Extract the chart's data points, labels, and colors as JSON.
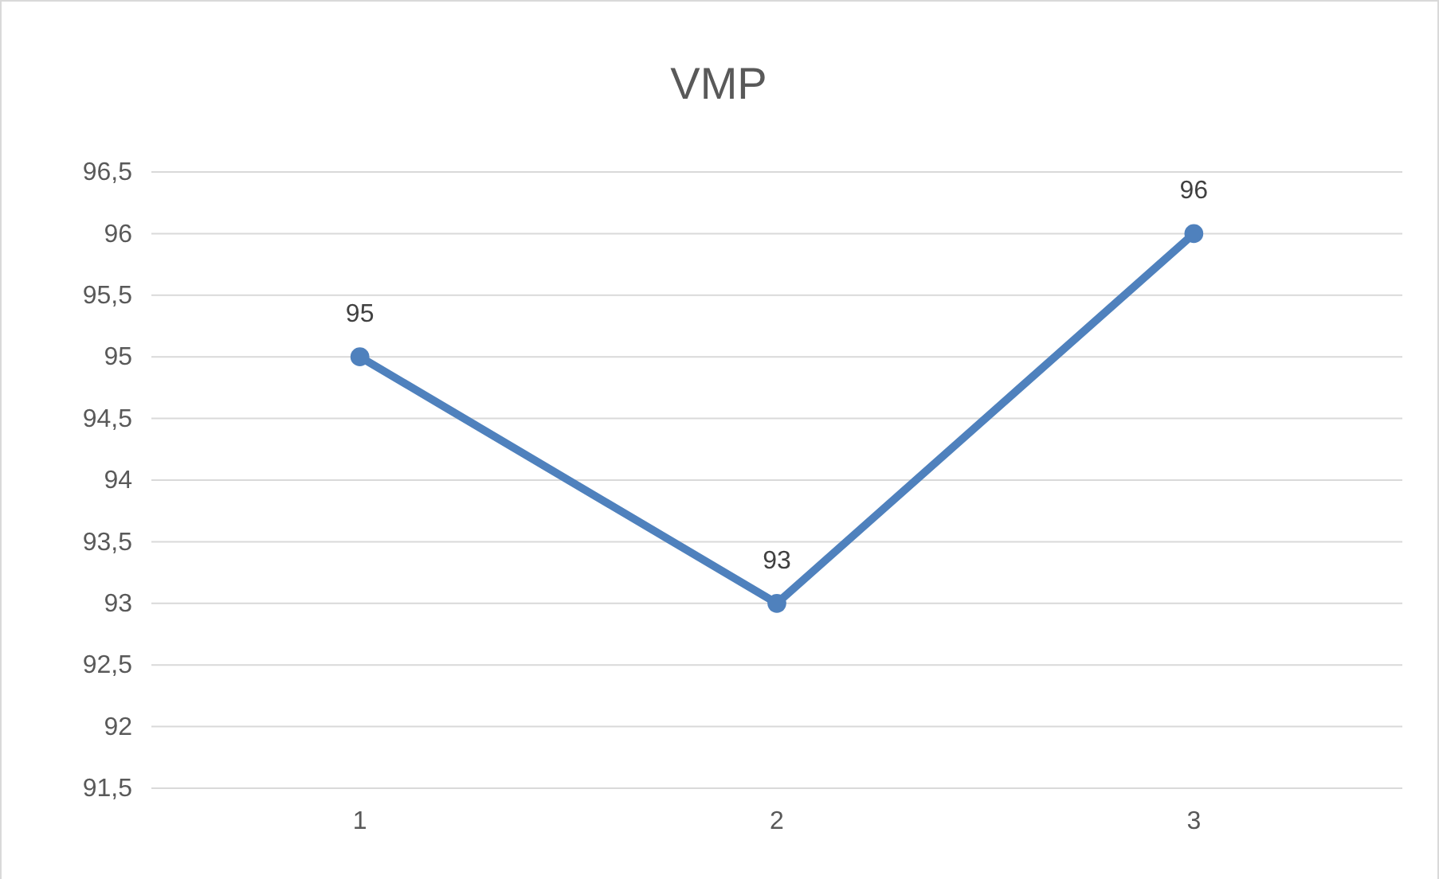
{
  "chart_data": {
    "type": "line",
    "title": "VMP",
    "categories": [
      "1",
      "2",
      "3"
    ],
    "series": [
      {
        "color": "#4f81bd",
        "values": [
          95,
          93,
          96
        ]
      }
    ],
    "ylim": [
      91.5,
      96.5
    ],
    "yticks": [
      {
        "value": 91.5,
        "label": "91,5"
      },
      92,
      {
        "value": 92.5,
        "label": "92,5"
      },
      93,
      {
        "value": 93.5,
        "label": "93,5"
      },
      94,
      {
        "value": 94.5,
        "label": "94,5"
      },
      95,
      {
        "value": 95.5,
        "label": "95,5"
      },
      96,
      {
        "value": 96.5,
        "label": "96,5"
      }
    ],
    "grid": "y",
    "marker": "circle",
    "line_style": "solid",
    "data_labels": true
  }
}
